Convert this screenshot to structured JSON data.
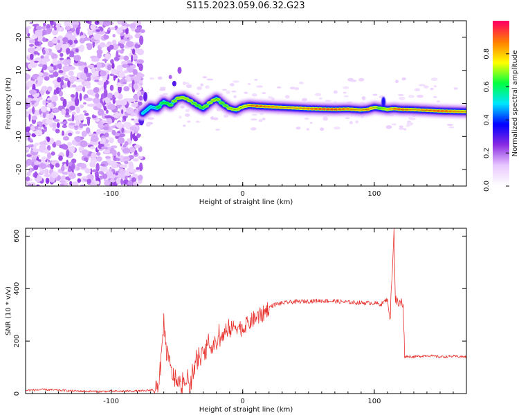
{
  "title": "S115.2023.059.06.32.G23",
  "chart_data": [
    {
      "type": "heatmap",
      "xlabel": "Height of straight line (km)",
      "ylabel": "Frequency (Hz)",
      "xlim": [
        -165,
        170
      ],
      "ylim": [
        -25,
        25
      ],
      "xticks": [
        -100,
        0,
        100
      ],
      "yticks": [
        -20,
        -10,
        0,
        10,
        20
      ],
      "colorbar": {
        "label": "Normalized spectral amplitude",
        "range": [
          0.0,
          1.0
        ],
        "ticks": [
          0.0,
          0.2,
          0.4,
          0.6,
          0.8
        ],
        "colors": [
          "#ffffff",
          "#e8c8ff",
          "#8a2be2",
          "#0000ff",
          "#00e5ff",
          "#00ff40",
          "#ffff00",
          "#ff8000",
          "#ff0060"
        ]
      },
      "ridge": {
        "x": [
          -76,
          -70,
          -65,
          -60,
          -55,
          -50,
          -45,
          -40,
          -35,
          -30,
          -25,
          -20,
          -15,
          -10,
          -5,
          0,
          5,
          10,
          20,
          30,
          40,
          50,
          60,
          70,
          80,
          90,
          95,
          100,
          105,
          110,
          115,
          120,
          130,
          140,
          150,
          160,
          170
        ],
        "y": [
          -3,
          -1,
          -1.5,
          0.5,
          -0.5,
          1.5,
          1.8,
          0.8,
          -0.5,
          -1.5,
          0.2,
          1.5,
          -0.2,
          -1.5,
          -2.0,
          -1.0,
          -0.6,
          -0.8,
          -1.0,
          -1.2,
          -1.4,
          -1.6,
          -1.7,
          -1.8,
          -1.7,
          -2.0,
          -1.8,
          -1.2,
          -1.5,
          -1.8,
          -1.6,
          -1.8,
          -1.9,
          -2.1,
          -2.3,
          -2.4,
          -2.5
        ],
        "amplitude": [
          0.5,
          0.55,
          0.6,
          0.6,
          0.65,
          0.7,
          0.7,
          0.7,
          0.65,
          0.65,
          0.7,
          0.7,
          0.65,
          0.7,
          0.7,
          0.75,
          0.8,
          0.9,
          0.85,
          0.8,
          0.8,
          0.85,
          0.9,
          0.92,
          0.85,
          0.8,
          0.85,
          0.75,
          0.65,
          0.75,
          0.85,
          0.9,
          0.8,
          0.85,
          0.9,
          0.85,
          0.8
        ]
      },
      "noise_region_x": [
        -165,
        -76
      ]
    },
    {
      "type": "line",
      "xlabel": "Height of straight line (km)",
      "ylabel": "SNR (10 * v/v)",
      "xlim": [
        -165,
        170
      ],
      "ylim": [
        0,
        630
      ],
      "xticks": [
        -100,
        0,
        100
      ],
      "yticks": [
        0,
        200,
        400,
        600
      ],
      "color": "#e8322e",
      "x": [
        -165,
        -150,
        -130,
        -110,
        -90,
        -75,
        -68,
        -64,
        -62,
        -60,
        -58,
        -56,
        -54,
        -52,
        -50,
        -48,
        -45,
        -42,
        -40,
        -35,
        -30,
        -25,
        -20,
        -15,
        -10,
        -5,
        0,
        5,
        10,
        15,
        20,
        25,
        30,
        40,
        50,
        60,
        70,
        80,
        90,
        100,
        105,
        110,
        112,
        114,
        115,
        116,
        118,
        120,
        122,
        123,
        125,
        130,
        140,
        150,
        160,
        170
      ],
      "y": [
        12,
        15,
        10,
        8,
        9,
        10,
        15,
        40,
        120,
        280,
        160,
        120,
        80,
        60,
        40,
        20,
        15,
        60,
        30,
        120,
        150,
        180,
        190,
        220,
        240,
        260,
        245,
        270,
        290,
        300,
        330,
        340,
        345,
        350,
        352,
        354,
        352,
        348,
        346,
        345,
        340,
        360,
        280,
        520,
        620,
        360,
        340,
        345,
        345,
        140,
        142,
        140,
        145,
        140,
        142,
        140
      ]
    }
  ]
}
